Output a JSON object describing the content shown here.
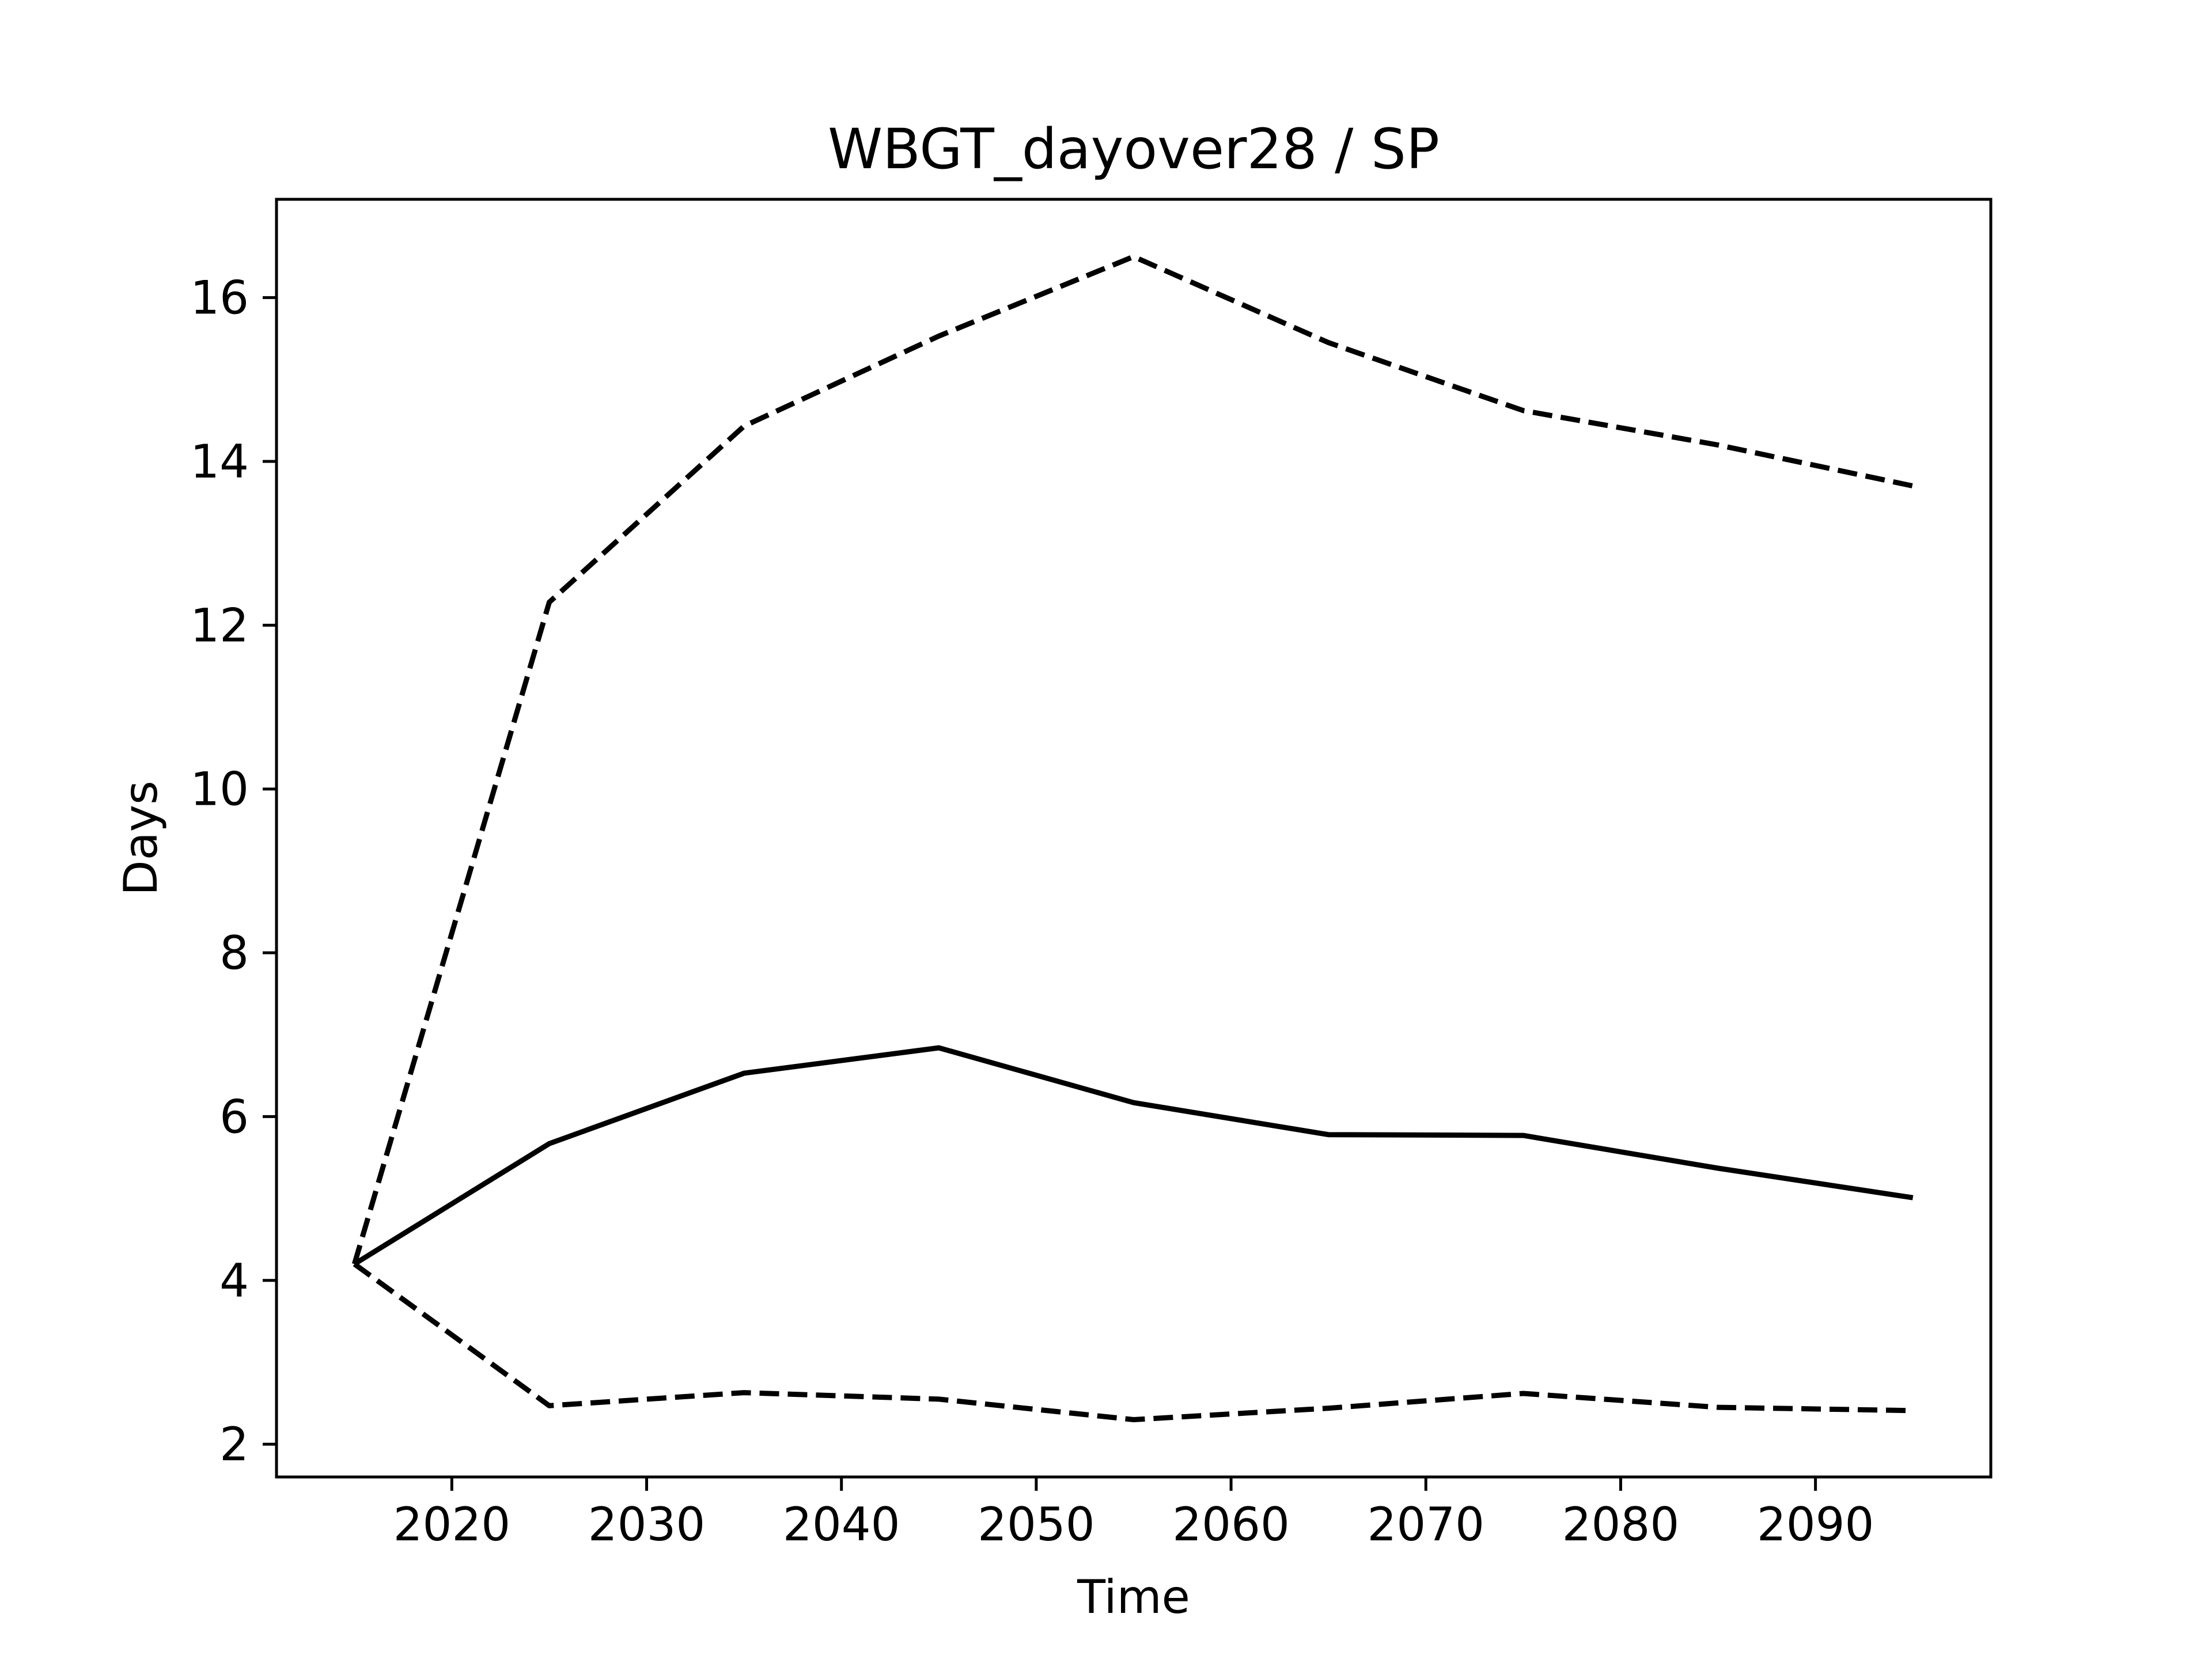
{
  "chart_data": {
    "type": "line",
    "title": "WBGT_dayover28 / SP",
    "xlabel": "Time",
    "ylabel": "Days",
    "x": [
      2015,
      2025,
      2035,
      2045,
      2055,
      2065,
      2075,
      2085,
      2095
    ],
    "xlim": [
      2011,
      2099
    ],
    "ylim": [
      1.6,
      17.2
    ],
    "xticks": [
      2020,
      2030,
      2040,
      2050,
      2060,
      2070,
      2080,
      2090
    ],
    "yticks": [
      2,
      4,
      6,
      8,
      10,
      12,
      14,
      16
    ],
    "grid": false,
    "series": [
      {
        "style": "dashed",
        "color": "#000000",
        "values": [
          4.2,
          12.28,
          14.43,
          15.53,
          16.5,
          15.45,
          14.62,
          14.2,
          13.7
        ]
      },
      {
        "style": "solid",
        "color": "#000000",
        "values": [
          4.2,
          5.67,
          6.53,
          6.84,
          6.17,
          5.78,
          5.77,
          5.37,
          5.01
        ]
      },
      {
        "style": "dashed",
        "color": "#000000",
        "values": [
          4.2,
          2.47,
          2.63,
          2.55,
          2.3,
          2.44,
          2.62,
          2.45,
          2.41
        ]
      }
    ]
  }
}
